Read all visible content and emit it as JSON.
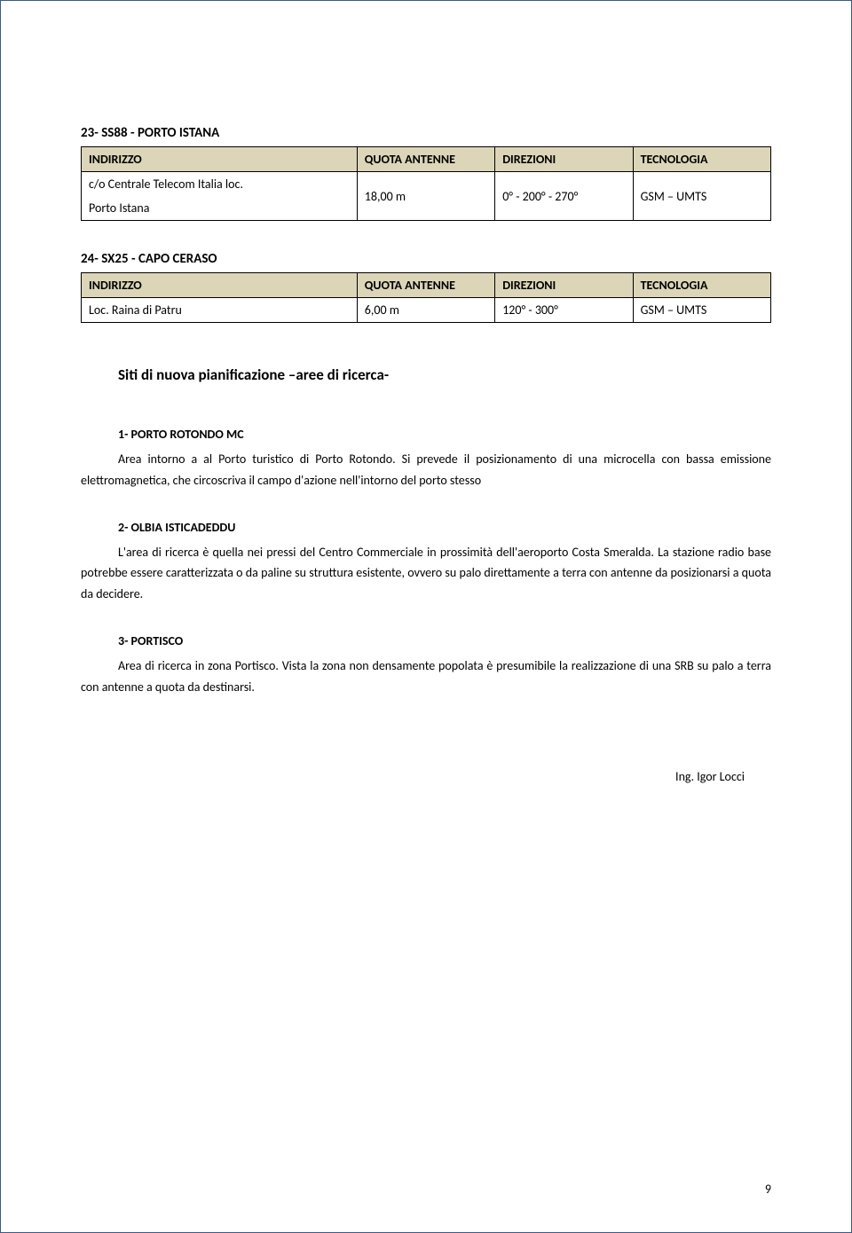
{
  "table1": {
    "title": "23- SS88 - PORTO ISTANA",
    "headers": [
      "INDIRIZZO",
      "QUOTA ANTENNE",
      "DIREZIONI",
      "TECNOLOGIA"
    ],
    "row": {
      "address1": "c/o Centrale Telecom Italia loc.",
      "address2": "Porto Istana",
      "quota": "18,00 m",
      "direzioni": "0° - 200° - 270°",
      "tecnologia": "GSM – UMTS"
    }
  },
  "table2": {
    "title": "24- SX25 - CAPO CERASO",
    "headers": [
      "INDIRIZZO",
      "QUOTA ANTENNE",
      "DIREZIONI",
      "TECNOLOGIA"
    ],
    "row": {
      "address": "Loc. Raina di Patru",
      "quota": "6,00 m",
      "direzioni": "120° - 300°",
      "tecnologia": "GSM – UMTS"
    }
  },
  "main_heading": "Siti di nuova pianificazione –aree di ricerca-",
  "section1": {
    "title": "1- PORTO ROTONDO MC",
    "text_inline": "Area intorno a al Porto turistico di Porto Rotondo. Si prevede il posizionamento di una microcella",
    "text_rest": "con bassa emissione elettromagnetica, che circoscriva il campo d'azione nell'intorno del porto stesso"
  },
  "section2": {
    "title": "2- OLBIA ISTICADEDDU",
    "text_inline": "L'area di ricerca è quella nei pressi del Centro Commerciale in prossimità dell'aeroporto Costa",
    "text_rest": "Smeralda. La stazione radio base potrebbe essere caratterizzata o da paline su struttura esistente, ovvero su palo direttamente a terra con antenne da posizionarsi a quota da decidere."
  },
  "section3": {
    "title": "3- PORTISCO",
    "text_inline": "Area di ricerca in zona Portisco. Vista la zona non densamente popolata è presumibile la",
    "text_rest": "realizzazione di una SRB su palo a terra con antenne a quota da destinarsi."
  },
  "signature": "Ing. Igor Locci",
  "page_number": "9"
}
